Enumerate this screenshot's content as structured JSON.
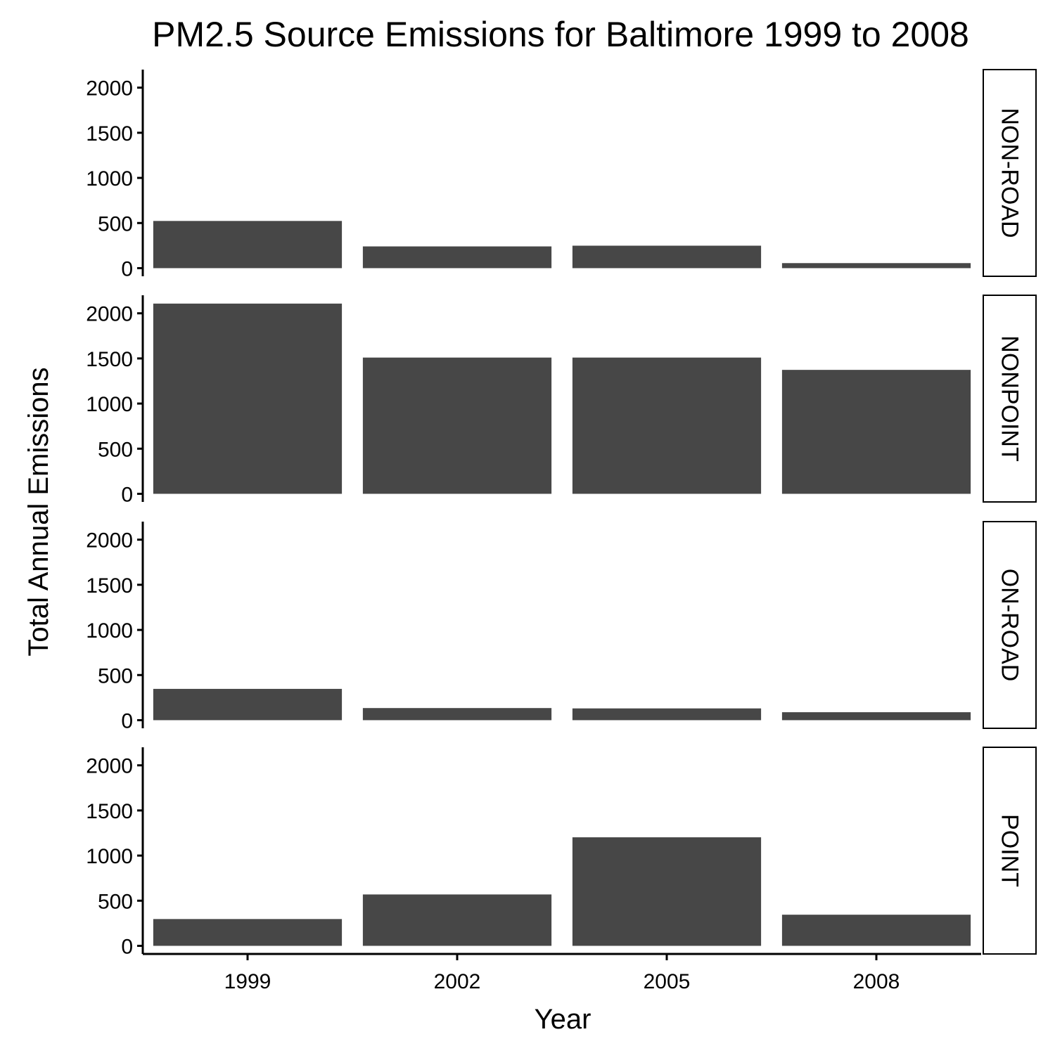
{
  "chart_data": {
    "type": "bar",
    "title": "PM2.5 Source Emissions for Baltimore 1999 to 2008",
    "xlabel": "Year",
    "ylabel": "Total Annual Emissions",
    "categories": [
      "1999",
      "2002",
      "2005",
      "2008"
    ],
    "ylim": [
      -90,
      2200
    ],
    "yticks": [
      0,
      500,
      1000,
      1500,
      2000
    ],
    "ytick_labels": [
      "0",
      "500",
      "1000",
      "1500",
      "2000"
    ],
    "grid": false,
    "bar_color": "#474747",
    "facets": [
      {
        "label": "NON-ROAD",
        "values": [
          522.94,
          240.85,
          248.93,
          55.82
        ]
      },
      {
        "label": "NONPOINT",
        "values": [
          2107.63,
          1509.5,
          1509.5,
          1373.21
        ]
      },
      {
        "label": "ON-ROAD",
        "values": [
          346.82,
          134.31,
          130.43,
          88.28
        ]
      },
      {
        "label": "POINT",
        "values": [
          296.8,
          569.26,
          1202.49,
          344.98
        ]
      }
    ]
  }
}
